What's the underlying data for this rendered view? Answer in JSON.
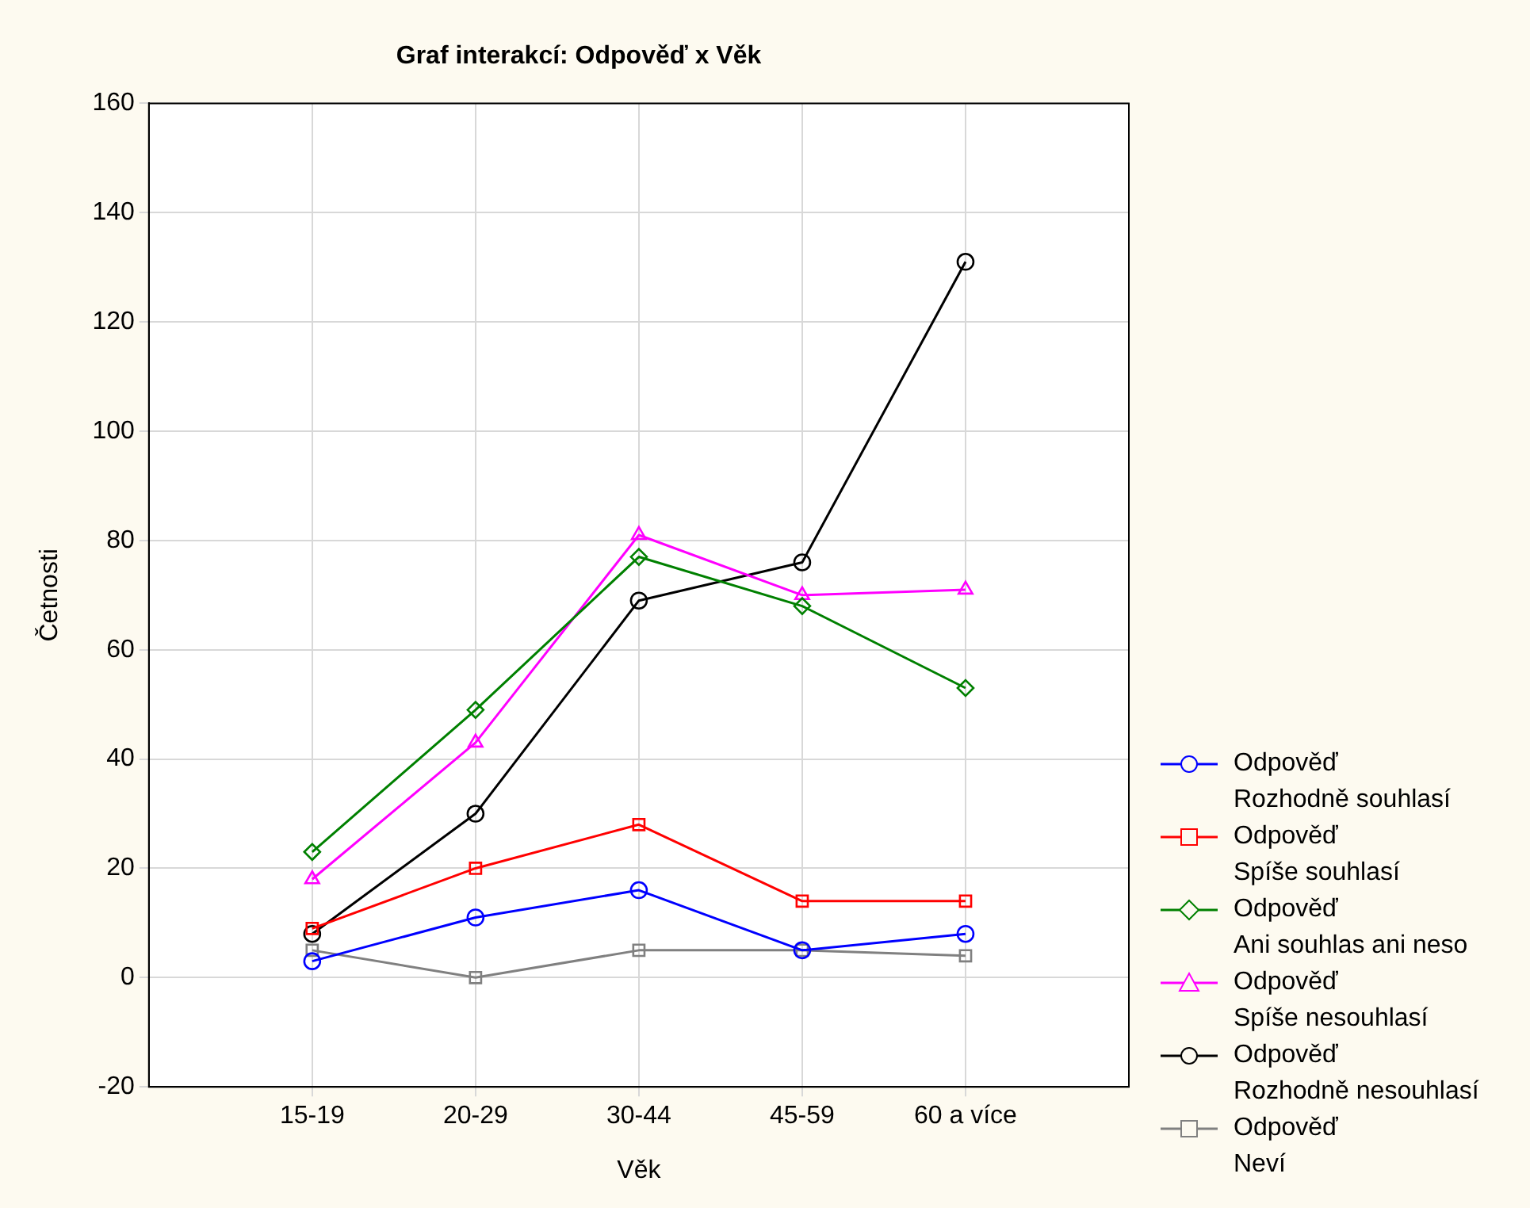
{
  "chart_data": {
    "type": "line",
    "title": "Graf interakcí: Odpověď x Věk",
    "xlabel": "Věk",
    "ylabel": "Četnosti",
    "categories": [
      "15-19",
      "20-29",
      "30-44",
      "45-59",
      "60 a více"
    ],
    "series": [
      {
        "name": "Odpověď\nRozhodně souhlasí",
        "color": "#0000ff",
        "marker": "circle",
        "values": [
          3,
          11,
          16,
          5,
          8
        ]
      },
      {
        "name": "Odpověď\nSpíše souhlasí",
        "color": "#ff0000",
        "marker": "square",
        "values": [
          9,
          20,
          28,
          14,
          14
        ]
      },
      {
        "name": "Odpověď\nAni souhlas ani neso",
        "color": "#008000",
        "marker": "diamond",
        "values": [
          23,
          49,
          77,
          68,
          53
        ]
      },
      {
        "name": "Odpověď\nSpíše nesouhlasí",
        "color": "#ff00ff",
        "marker": "triangle",
        "values": [
          18,
          43,
          81,
          70,
          71
        ]
      },
      {
        "name": "Odpověď\nRozhodně nesouhlasí",
        "color": "#000000",
        "marker": "circle",
        "values": [
          8,
          30,
          69,
          76,
          131
        ]
      },
      {
        "name": "Odpověď\nNeví",
        "color": "#808080",
        "marker": "square",
        "values": [
          5,
          0,
          5,
          5,
          4
        ]
      }
    ],
    "ylim": [
      -20,
      160
    ],
    "yticks": [
      -20,
      0,
      20,
      40,
      60,
      80,
      100,
      120,
      140,
      160
    ],
    "grid": true,
    "legend": "bottom right",
    "line_style": "solid"
  }
}
